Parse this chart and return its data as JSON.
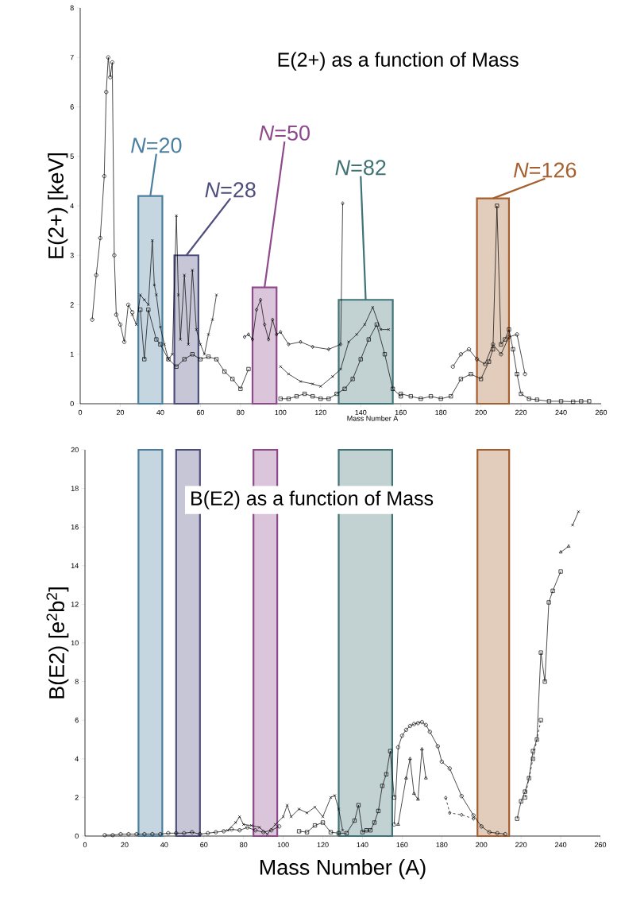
{
  "chart_data": [
    {
      "type": "line",
      "title": "E(2+) as a function of Mass",
      "xlabel": "Mass Number A",
      "ylabel": "E(2+) [keV]",
      "xlim": [
        0,
        260
      ],
      "ylim": [
        0,
        8
      ],
      "xticks": [
        0,
        20,
        40,
        60,
        80,
        100,
        120,
        140,
        160,
        180,
        200,
        220,
        240,
        260
      ],
      "yticks": [
        0,
        1,
        2,
        3,
        4,
        5,
        6,
        7,
        8
      ],
      "bands": [
        {
          "axis": "x",
          "from": 29,
          "to": 41,
          "label": "*N*=20",
          "color": "#4a7fa0"
        },
        {
          "axis": "x",
          "from": 47,
          "to": 59,
          "label": "*N*=28",
          "color": "#4e4e7e"
        },
        {
          "axis": "x",
          "from": 86,
          "to": 98,
          "label": "*N*=50",
          "color": "#8e4a8c"
        },
        {
          "axis": "x",
          "from": 129,
          "to": 156,
          "label": "*N*=82",
          "color": "#3f7375"
        },
        {
          "axis": "x",
          "from": 198,
          "to": 214,
          "label": "*N*=126",
          "color": "#a55f2e"
        }
      ],
      "series": [
        {
          "color": "#000000",
          "marker": "circle",
          "x": [
            6,
            8,
            10,
            12,
            13,
            14,
            15,
            16,
            17,
            18,
            20,
            22,
            24,
            26
          ],
          "values": [
            1.7,
            2.6,
            3.35,
            4.6,
            6.3,
            7.0,
            6.6,
            6.9,
            3.0,
            1.8,
            1.6,
            1.25,
            2.0,
            1.85
          ]
        },
        {
          "color": "#000000",
          "marker": "cross",
          "x": [
            26,
            28,
            30,
            32,
            34,
            36,
            37,
            38,
            40,
            42,
            44,
            46,
            48,
            49,
            50,
            52,
            54,
            56,
            58,
            60,
            62,
            64,
            66,
            68
          ],
          "values": [
            1.8,
            1.6,
            2.2,
            2.1,
            2.0,
            3.3,
            2.4,
            2.2,
            1.55,
            1.2,
            0.9,
            1.0,
            3.8,
            2.2,
            1.3,
            2.6,
            1.2,
            2.7,
            1.5,
            1.2,
            1.0,
            1.4,
            1.7,
            2.2
          ]
        },
        {
          "color": "#000000",
          "marker": "square",
          "x": [
            30,
            32,
            34,
            38,
            40,
            44,
            48,
            52,
            56,
            60,
            64,
            68,
            72,
            76,
            80,
            84
          ],
          "values": [
            1.9,
            0.9,
            1.9,
            1.3,
            1.2,
            0.9,
            0.75,
            0.9,
            1.0,
            0.9,
            0.95,
            0.9,
            0.65,
            0.5,
            0.3,
            0.7
          ]
        },
        {
          "color": "#000000",
          "marker": "diamond",
          "x": [
            82,
            84,
            86,
            88,
            90,
            92,
            94,
            96,
            98,
            100,
            104,
            110,
            116,
            124,
            130,
            131
          ],
          "values": [
            1.35,
            1.4,
            1.3,
            1.9,
            2.1,
            1.6,
            1.3,
            1.7,
            1.4,
            1.45,
            1.2,
            1.25,
            1.15,
            1.1,
            1.2,
            4.05
          ]
        },
        {
          "color": "#000000",
          "marker": "cross",
          "x": [
            100,
            104,
            110,
            116,
            120,
            126,
            130,
            134,
            138,
            142,
            146,
            150,
            154
          ],
          "values": [
            0.75,
            0.6,
            0.45,
            0.4,
            0.35,
            0.55,
            0.7,
            1.25,
            1.4,
            1.6,
            1.95,
            1.5,
            1.5
          ]
        },
        {
          "color": "#000000",
          "marker": "square",
          "x": [
            100,
            104,
            108,
            112,
            116,
            120,
            124,
            128,
            132,
            136,
            140,
            144,
            148,
            152,
            156,
            160
          ],
          "values": [
            0.1,
            0.1,
            0.15,
            0.2,
            0.15,
            0.1,
            0.1,
            0.2,
            0.3,
            0.5,
            0.9,
            1.3,
            1.6,
            1.0,
            0.3,
            0.15
          ]
        },
        {
          "color": "#000000",
          "marker": "square",
          "x": [
            160,
            165,
            170,
            175,
            180,
            185,
            190,
            195,
            200,
            204,
            206,
            208,
            210,
            212,
            214,
            216,
            218,
            220,
            224,
            228,
            234,
            240,
            246,
            250,
            254
          ],
          "values": [
            0.2,
            0.15,
            0.1,
            0.15,
            0.1,
            0.15,
            0.5,
            0.6,
            0.5,
            0.85,
            1.1,
            4.0,
            1.2,
            1.3,
            1.5,
            1.1,
            0.6,
            0.2,
            0.1,
            0.08,
            0.05,
            0.05,
            0.04,
            0.05,
            0.05
          ]
        },
        {
          "color": "#000000",
          "marker": "circle",
          "x": [
            186,
            190,
            194,
            198,
            202,
            206,
            210,
            214,
            218,
            222
          ],
          "values": [
            0.75,
            1.0,
            1.1,
            0.9,
            0.8,
            1.2,
            1.0,
            1.35,
            1.4,
            0.6
          ]
        }
      ]
    },
    {
      "type": "line",
      "title": "B(E2) as a function of Mass",
      "xlabel": "Mass Number (A)",
      "ylabel": "B(E2) [e$^{2}$b$^{2}$]",
      "xlim": [
        0,
        260
      ],
      "ylim": [
        0,
        20
      ],
      "xticks": [
        0,
        20,
        40,
        60,
        80,
        100,
        120,
        140,
        160,
        180,
        200,
        220,
        240,
        260
      ],
      "yticks": [
        0,
        2,
        4,
        6,
        8,
        10,
        12,
        14,
        16,
        18,
        20
      ],
      "bands": [
        {
          "axis": "x",
          "from": 27,
          "to": 39,
          "color": "#4a7fa0"
        },
        {
          "axis": "x",
          "from": 46,
          "to": 58,
          "color": "#4e4e7e"
        },
        {
          "axis": "x",
          "from": 85,
          "to": 97,
          "color": "#8e4a8c"
        },
        {
          "axis": "x",
          "from": 128,
          "to": 155,
          "color": "#3f7375"
        },
        {
          "axis": "x",
          "from": 198,
          "to": 214,
          "color": "#a55f2e"
        }
      ],
      "series": [
        {
          "color": "#000000",
          "marker": "circle",
          "x": [
            10,
            14,
            18,
            22,
            26,
            30,
            34,
            38,
            42,
            46,
            50,
            54,
            58,
            62,
            66,
            70,
            74,
            78,
            82,
            86,
            90,
            94,
            98
          ],
          "values": [
            0.05,
            0.05,
            0.1,
            0.1,
            0.1,
            0.1,
            0.1,
            0.1,
            0.15,
            0.15,
            0.15,
            0.2,
            0.1,
            0.15,
            0.2,
            0.25,
            0.35,
            0.3,
            0.45,
            0.3,
            0.2,
            0.3,
            0.5
          ]
        },
        {
          "color": "#000000",
          "marker": "cross",
          "x": [
            72,
            76,
            78,
            80,
            84,
            88,
            92,
            96,
            100,
            102,
            104,
            108,
            112,
            116,
            120,
            124,
            126,
            128,
            130
          ],
          "values": [
            0.3,
            0.7,
            1.0,
            0.6,
            0.55,
            0.45,
            0.1,
            0.6,
            1.0,
            1.6,
            1.0,
            1.4,
            1.2,
            1.5,
            1.0,
            2.0,
            2.1,
            1.4,
            0.3
          ]
        },
        {
          "color": "#000000",
          "marker": "square",
          "x": [
            108,
            112,
            116,
            120,
            124,
            128,
            132,
            136,
            138,
            140,
            142,
            144,
            146,
            148,
            150,
            152,
            154,
            156
          ],
          "values": [
            0.25,
            0.2,
            0.55,
            0.7,
            0.2,
            0.15,
            0.15,
            0.8,
            1.6,
            0.2,
            0.3,
            0.3,
            0.7,
            1.3,
            2.6,
            3.2,
            4.4,
            2.0
          ]
        },
        {
          "color": "#000000",
          "marker": "circle",
          "x": [
            156,
            158,
            160,
            162,
            164,
            166,
            168,
            170,
            172,
            174,
            178,
            180,
            184,
            190,
            196,
            200,
            204,
            208,
            212
          ],
          "values": [
            0.6,
            4.6,
            5.2,
            5.5,
            5.7,
            5.8,
            5.85,
            5.9,
            5.75,
            5.4,
            4.65,
            3.85,
            3.5,
            2.07,
            1.07,
            0.5,
            0.2,
            0.15,
            0.1
          ]
        },
        {
          "color": "#000000",
          "marker": "triangle",
          "x": [
            158,
            162,
            164,
            166,
            168,
            170,
            172
          ],
          "values": [
            0.6,
            3.0,
            4.0,
            2.2,
            1.9,
            4.5,
            3.0
          ]
        },
        {
          "color": "#000000",
          "marker": "diamond",
          "line_style": "dashed",
          "x": [
            182,
            184,
            190,
            196
          ],
          "values": [
            1.98,
            1.2,
            1.1,
            0.9
          ]
        },
        {
          "color": "#000000",
          "marker": "square",
          "x": [
            218,
            220,
            222,
            224,
            226,
            228,
            230,
            232,
            234,
            236,
            240
          ],
          "values": [
            0.9,
            1.8,
            2.3,
            3.0,
            4.4,
            5.0,
            9.5,
            8.0,
            12.1,
            12.7,
            13.7
          ]
        },
        {
          "color": "#000000",
          "marker": "square",
          "line_style": "dashed",
          "x": [
            222,
            226,
            230
          ],
          "values": [
            2.0,
            4.0,
            6.0
          ]
        },
        {
          "color": "#000000",
          "marker": "triangle",
          "x": [
            240,
            244
          ],
          "values": [
            14.7,
            15.0
          ]
        },
        {
          "color": "#000000",
          "marker": "cross",
          "x": [
            246,
            249
          ],
          "values": [
            16.1,
            16.8
          ]
        }
      ]
    }
  ]
}
